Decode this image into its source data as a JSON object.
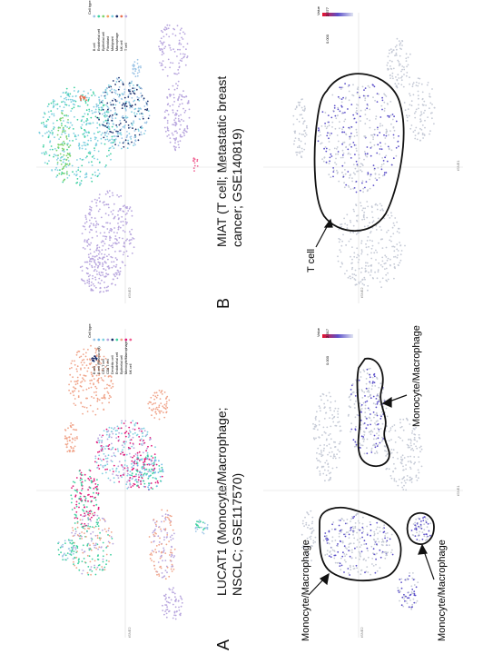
{
  "panels": [
    {
      "letter": "A",
      "title_line1": "LUCAT1 (Monocyte/Macrophage;",
      "title_line2": "NSCLC; GSE117570)",
      "legend_title": "Cell type",
      "legend": [
        {
          "label": "B cell",
          "color": "#9ec5e6"
        },
        {
          "label": "B cell (Plasma cell)",
          "color": "#6fb7e8"
        },
        {
          "label": "CD4 T cell",
          "color": "#7fd0e0"
        },
        {
          "label": "CD8 T cell",
          "color": "#b8a6de"
        },
        {
          "label": "Dendritic cell",
          "color": "#1a2f6b"
        },
        {
          "label": "Endothelial cell",
          "color": "#3fd1a0"
        },
        {
          "label": "Epithelial cell",
          "color": "#f0a48a"
        },
        {
          "label": "Monocyte/Macrophage",
          "color": "#e0197a"
        },
        {
          "label": "NK cell",
          "color": "#f06292"
        }
      ],
      "value_title": "Value",
      "value_max": "2.917",
      "value_min": "0.000",
      "annotations": [
        "Monocyte/Macrophage",
        "Monocyte/Macrophage",
        "Monocyte/Macrophage"
      ],
      "axis_x": "tSNE1",
      "axis_y": "tSNE2"
    },
    {
      "letter": "B",
      "title_line1": "MIAT (T cell; Metastatic breast",
      "title_line2": "cancer; GSE140819)",
      "legend_title": "Cell type",
      "legend": [
        {
          "label": "B cell",
          "color": "#9ec5e6"
        },
        {
          "label": "Endothelial cell",
          "color": "#3fd1a0"
        },
        {
          "label": "Epithelial cell",
          "color": "#7dd36e"
        },
        {
          "label": "Fibroblast",
          "color": "#f4a261"
        },
        {
          "label": "Malignant",
          "color": "#7fd0e0"
        },
        {
          "label": "Macrophage",
          "color": "#1a2f6b"
        },
        {
          "label": "NK cell",
          "color": "#e76f51"
        },
        {
          "label": "T cell",
          "color": "#b8a6de"
        }
      ],
      "value_title": "Value",
      "value_max": "2.577",
      "value_min": "0.000",
      "annotations": [
        "T cell"
      ],
      "axis_x": "tSNE1",
      "axis_y": "tSNE2"
    }
  ],
  "colors": {
    "dot_gray": "#c5cad6",
    "dot_blue": "#5b4fc9",
    "outline": "#111111"
  }
}
